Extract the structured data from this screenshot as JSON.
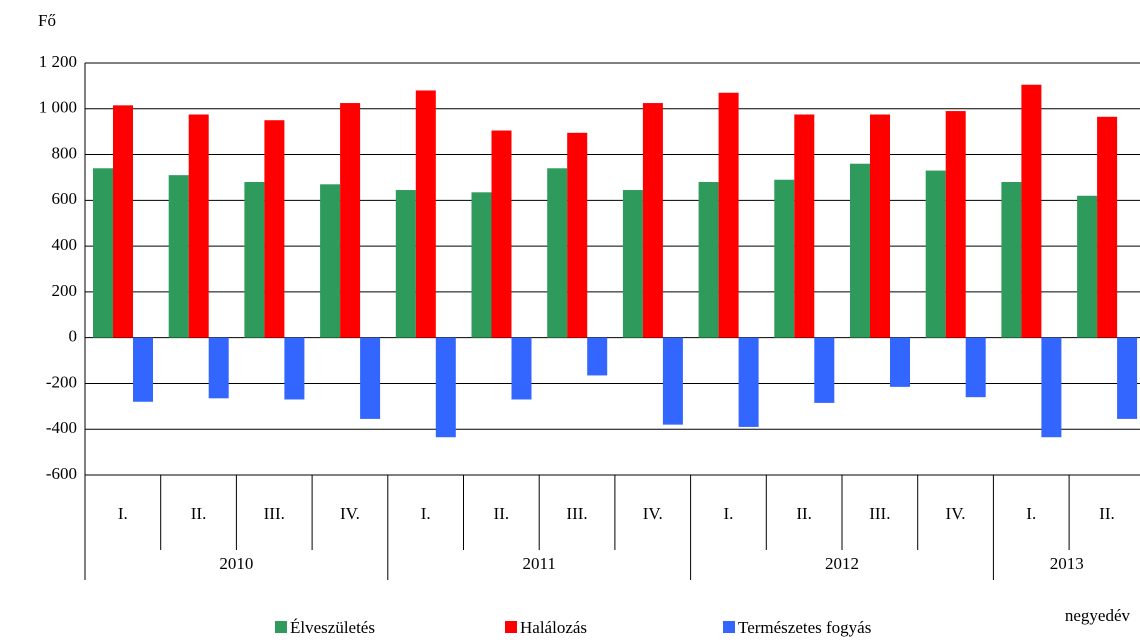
{
  "chart_data": {
    "type": "bar",
    "y_label": "Fő",
    "x_label": "negyedév",
    "groups": [
      {
        "name": "2010",
        "categories": [
          "I.",
          "II.",
          "III.",
          "IV."
        ]
      },
      {
        "name": "2011",
        "categories": [
          "I.",
          "II.",
          "III.",
          "IV."
        ]
      },
      {
        "name": "2012",
        "categories": [
          "I.",
          "II.",
          "III.",
          "IV."
        ]
      },
      {
        "name": "2013",
        "categories": [
          "I.",
          "II."
        ]
      }
    ],
    "series": [
      {
        "name": "Élveszületés",
        "color": "#2e9a5c",
        "values": [
          740,
          710,
          680,
          670,
          645,
          635,
          740,
          645,
          680,
          690,
          760,
          730,
          680,
          620
        ]
      },
      {
        "name": "Halálozás",
        "color": "#ff0000",
        "values": [
          1015,
          975,
          950,
          1025,
          1080,
          905,
          895,
          1025,
          1070,
          975,
          975,
          990,
          1105,
          965
        ]
      },
      {
        "name": "Természetes fogyás",
        "color": "#3366ff",
        "values": [
          -280,
          -265,
          -270,
          -355,
          -435,
          -270,
          -165,
          -380,
          -390,
          -285,
          -215,
          -260,
          -435,
          -355
        ]
      }
    ],
    "ylim": [
      -600,
      1200
    ],
    "yticks": [
      -600,
      -400,
      -200,
      0,
      200,
      400,
      600,
      800,
      {
        "value": 1000,
        "label": "1 000"
      },
      {
        "value": 1200,
        "label": "1 200"
      }
    ],
    "grid": true,
    "legend": "bottom"
  }
}
